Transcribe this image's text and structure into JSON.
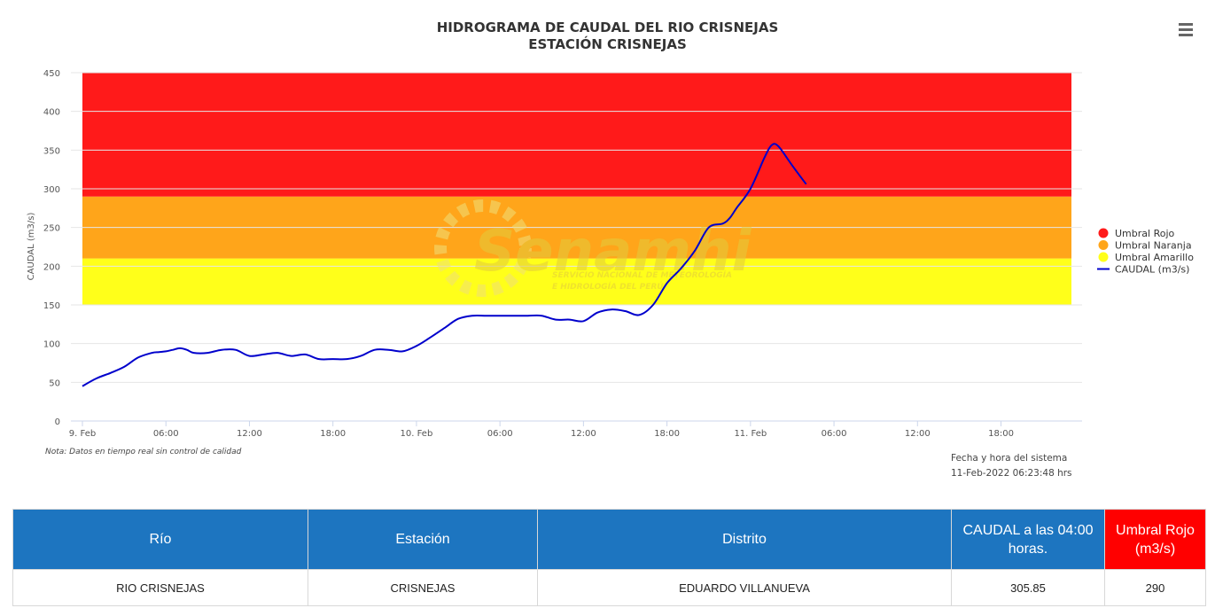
{
  "chart_data": {
    "type": "line",
    "title": "HIDROGRAMA DE CAUDAL DEL RIO CRISNEJAS",
    "subtitle": "ESTACIÓN CRISNEJAS",
    "ylabel": "CAUDAL (m3/s)",
    "ylim": [
      0,
      450
    ],
    "yticks": [
      0,
      50,
      100,
      150,
      200,
      250,
      300,
      350,
      400,
      450
    ],
    "x_range_hours": [
      0,
      72
    ],
    "x_ticks": [
      {
        "h": 0,
        "label": "9. Feb"
      },
      {
        "h": 6,
        "label": "06:00"
      },
      {
        "h": 12,
        "label": "12:00"
      },
      {
        "h": 18,
        "label": "18:00"
      },
      {
        "h": 24,
        "label": "10. Feb"
      },
      {
        "h": 30,
        "label": "06:00"
      },
      {
        "h": 36,
        "label": "12:00"
      },
      {
        "h": 42,
        "label": "18:00"
      },
      {
        "h": 48,
        "label": "11. Feb"
      },
      {
        "h": 54,
        "label": "06:00"
      },
      {
        "h": 60,
        "label": "12:00"
      },
      {
        "h": 66,
        "label": "18:00"
      }
    ],
    "bands": [
      {
        "name": "Umbral Amarillo",
        "from": 150,
        "to": 210,
        "color": "#ffff1a"
      },
      {
        "name": "Umbral Naranja",
        "from": 210,
        "to": 290,
        "color": "#ffa51a"
      },
      {
        "name": "Umbral Rojo",
        "from": 290,
        "to": 450,
        "color": "#ff1a1a"
      }
    ],
    "series": [
      {
        "name": "CAUDAL (m3/s)",
        "color": "#0000cc",
        "x": [
          0,
          1,
          2,
          3,
          4,
          5,
          5.5,
          6,
          6.5,
          7,
          7.5,
          8,
          9,
          10,
          11,
          12,
          13,
          14,
          15,
          16,
          17,
          18,
          19,
          20,
          21,
          22,
          23,
          24,
          25,
          26,
          27,
          28,
          29,
          30,
          31,
          32,
          33,
          34,
          35,
          36,
          37,
          38,
          39,
          40,
          41,
          42,
          43,
          44,
          45,
          46,
          46.5,
          47,
          48,
          49,
          49.5,
          50,
          51,
          52
        ],
        "values": [
          45,
          55,
          62,
          70,
          82,
          88,
          89,
          90,
          92,
          94,
          92,
          88,
          88,
          92,
          92,
          84,
          86,
          88,
          84,
          86,
          80,
          80,
          80,
          84,
          92,
          92,
          90,
          97,
          108,
          120,
          132,
          136,
          136,
          136,
          136,
          136,
          136,
          131,
          131,
          129,
          140,
          144,
          142,
          137,
          150,
          178,
          197,
          220,
          250,
          255,
          262,
          275,
          300,
          340,
          356,
          355,
          330,
          306
        ]
      }
    ]
  },
  "legend": [
    {
      "label": "Umbral Rojo",
      "color": "#ff1a1a",
      "kind": "dot"
    },
    {
      "label": "Umbral Naranja",
      "color": "#ffa51a",
      "kind": "dot"
    },
    {
      "label": "Umbral Amarillo",
      "color": "#ffff1a",
      "kind": "dot"
    },
    {
      "label": "CAUDAL (m3/s)",
      "color": "#0000cc",
      "kind": "line"
    }
  ],
  "watermark": {
    "brand": "Senamhi",
    "line1": "SERVICIO NACIONAL DE METEOROLOGÍA",
    "line2": "E HIDROLOGÍA DEL PERÚ",
    "color": "#e8d24a"
  },
  "note": "Nota: Datos en tiempo real sin control de calidad",
  "system_time": {
    "label": "Fecha y hora del sistema",
    "value": "11-Feb-2022 06:23:48 hrs"
  },
  "table": {
    "headers": [
      "Río",
      "Estación",
      "Distrito",
      "CAUDAL a las 04:00 horas.",
      "Umbral Rojo (m3/s)"
    ],
    "row": [
      "RIO CRISNEJAS",
      "CRISNEJAS",
      "EDUARDO VILLANUEVA",
      "305.85",
      "290"
    ]
  },
  "menu_icon": "hamburger-menu-icon"
}
